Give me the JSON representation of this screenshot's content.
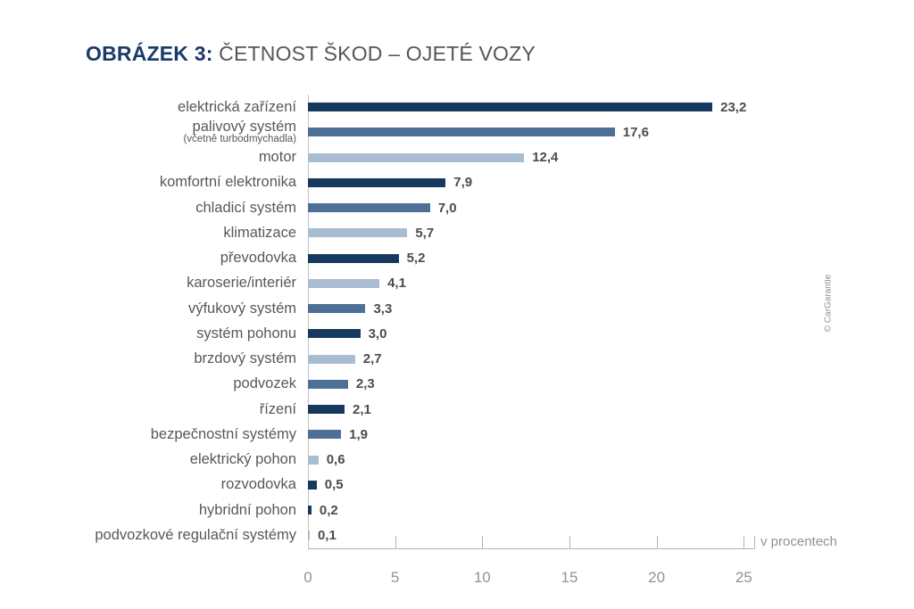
{
  "title": {
    "prefix": "OBRÁZEK 3:",
    "main": "ČETNOST ŠKOD – OJETÉ VOZY"
  },
  "watermark": "© CarGarantie",
  "axis": {
    "unit_label": "v procentech"
  },
  "colors": {
    "dark": "#16395f",
    "medium": "#4d7097",
    "light": "#a9bdd0"
  },
  "chart_data": {
    "type": "bar",
    "orientation": "horizontal",
    "title": "OBRÁZEK 3: ČETNOST ŠKOD – OJETÉ VOZY",
    "xlabel": "v procentech",
    "xlim": [
      0,
      25.6
    ],
    "x_ticks": [
      0,
      5,
      10,
      15,
      20,
      25
    ],
    "grid": false,
    "legend": false,
    "categories": [
      "elektrická zařízení",
      "palivový systém (včetně turbodmychadla)",
      "motor",
      "komfortní elektronika",
      "chladicí systém",
      "klimatizace",
      "převodovka",
      "karoserie/interiér",
      "výfukový systém",
      "systém pohonu",
      "brzdový systém",
      "podvozek",
      "řízení",
      "bezpečnostní systémy",
      "elektrický pohon",
      "rozvodovka",
      "hybridní pohon",
      "podvozkové regulační systémy"
    ],
    "values": [
      23.2,
      17.6,
      12.4,
      7.9,
      7.0,
      5.7,
      5.2,
      4.1,
      3.3,
      3.0,
      2.7,
      2.3,
      2.1,
      1.9,
      0.6,
      0.5,
      0.2,
      0.1
    ],
    "bars": [
      {
        "label": "elektrická zařízení",
        "sublabel": "",
        "value": 23.2,
        "display": "23,2",
        "color": "dark"
      },
      {
        "label": "palivový systém",
        "sublabel": "(včetně turbodmychadla)",
        "value": 17.6,
        "display": "17,6",
        "color": "medium"
      },
      {
        "label": "motor",
        "sublabel": "",
        "value": 12.4,
        "display": "12,4",
        "color": "light"
      },
      {
        "label": "komfortní elektronika",
        "sublabel": "",
        "value": 7.9,
        "display": "7,9",
        "color": "dark"
      },
      {
        "label": "chladicí systém",
        "sublabel": "",
        "value": 7.0,
        "display": "7,0",
        "color": "medium"
      },
      {
        "label": "klimatizace",
        "sublabel": "",
        "value": 5.7,
        "display": "5,7",
        "color": "light"
      },
      {
        "label": "převodovka",
        "sublabel": "",
        "value": 5.2,
        "display": "5,2",
        "color": "dark"
      },
      {
        "label": "karoserie/interiér",
        "sublabel": "",
        "value": 4.1,
        "display": "4,1",
        "color": "light"
      },
      {
        "label": "výfukový systém",
        "sublabel": "",
        "value": 3.3,
        "display": "3,3",
        "color": "medium"
      },
      {
        "label": "systém pohonu",
        "sublabel": "",
        "value": 3.0,
        "display": "3,0",
        "color": "dark"
      },
      {
        "label": "brzdový systém",
        "sublabel": "",
        "value": 2.7,
        "display": "2,7",
        "color": "light"
      },
      {
        "label": "podvozek",
        "sublabel": "",
        "value": 2.3,
        "display": "2,3",
        "color": "medium"
      },
      {
        "label": "řízení",
        "sublabel": "",
        "value": 2.1,
        "display": "2,1",
        "color": "dark"
      },
      {
        "label": "bezpečnostní systémy",
        "sublabel": "",
        "value": 1.9,
        "display": "1,9",
        "color": "medium"
      },
      {
        "label": "elektrický pohon",
        "sublabel": "",
        "value": 0.6,
        "display": "0,6",
        "color": "light"
      },
      {
        "label": "rozvodovka",
        "sublabel": "",
        "value": 0.5,
        "display": "0,5",
        "color": "dark"
      },
      {
        "label": "hybridní pohon",
        "sublabel": "",
        "value": 0.2,
        "display": "0,2",
        "color": "dark"
      },
      {
        "label": "podvozkové regulační systémy",
        "sublabel": "",
        "value": 0.1,
        "display": "0,1",
        "color": "light"
      }
    ]
  }
}
